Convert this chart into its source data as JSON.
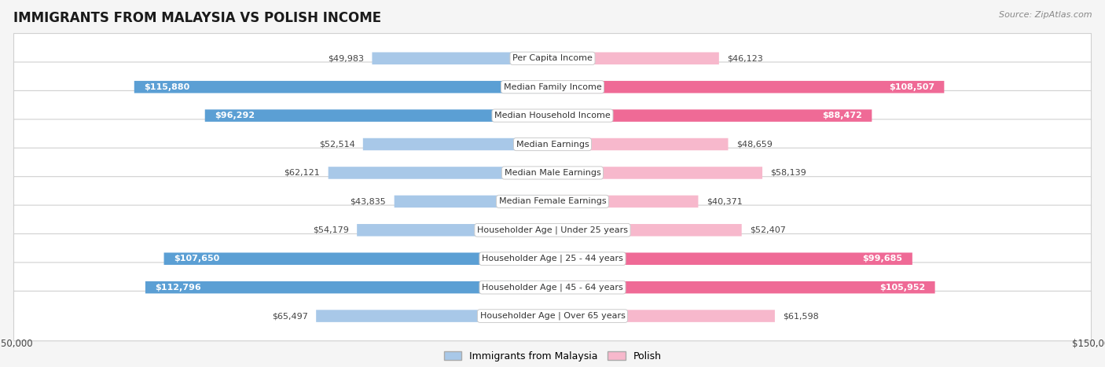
{
  "title": "IMMIGRANTS FROM MALAYSIA VS POLISH INCOME",
  "source": "Source: ZipAtlas.com",
  "categories": [
    "Per Capita Income",
    "Median Family Income",
    "Median Household Income",
    "Median Earnings",
    "Median Male Earnings",
    "Median Female Earnings",
    "Householder Age | Under 25 years",
    "Householder Age | 25 - 44 years",
    "Householder Age | 45 - 64 years",
    "Householder Age | Over 65 years"
  ],
  "malaysia_values": [
    49983,
    115880,
    96292,
    52514,
    62121,
    43835,
    54179,
    107650,
    112796,
    65497
  ],
  "polish_values": [
    46123,
    108507,
    88472,
    48659,
    58139,
    40371,
    52407,
    99685,
    105952,
    61598
  ],
  "malaysia_labels": [
    "$49,983",
    "$115,880",
    "$96,292",
    "$52,514",
    "$62,121",
    "$43,835",
    "$54,179",
    "$107,650",
    "$112,796",
    "$65,497"
  ],
  "polish_labels": [
    "$46,123",
    "$108,507",
    "$88,472",
    "$48,659",
    "$58,139",
    "$40,371",
    "$52,407",
    "$99,685",
    "$105,952",
    "$61,598"
  ],
  "malaysia_color_light": "#a8c8e8",
  "malaysia_color_dark": "#5b9fd4",
  "polish_color_light": "#f7b8cc",
  "polish_color_dark": "#ef6a96",
  "max_value": 150000,
  "threshold": 70000,
  "title_fontsize": 12,
  "label_fontsize": 8,
  "category_fontsize": 8
}
